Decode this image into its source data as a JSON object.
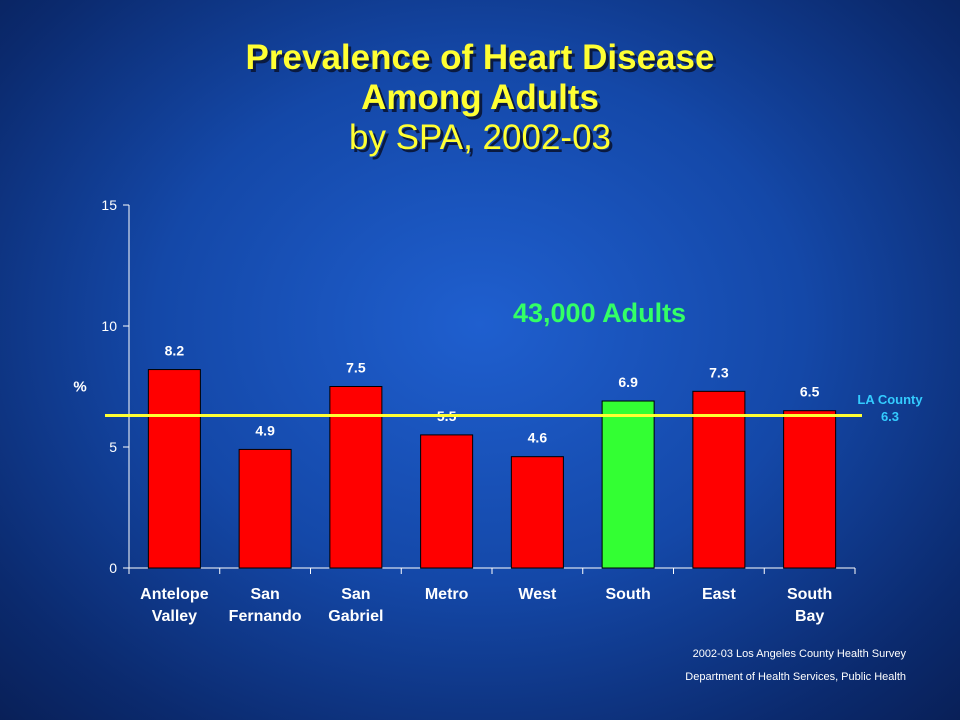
{
  "title": {
    "line1": "Prevalence of Heart Disease",
    "line2": "Among Adults",
    "line3": "by SPA, 2002-03"
  },
  "annotation": "43,000 Adults",
  "reference": {
    "label": "LA County",
    "value": "6.3",
    "y": 6.3,
    "color": "#ffff33"
  },
  "footer": {
    "source": "2002-03 Los Angeles County Health Survey",
    "dept": "Department of Health Services, Public Health"
  },
  "chart_data": {
    "type": "bar",
    "title": "Prevalence of Heart Disease Among Adults by SPA, 2002-03",
    "ylabel": "%",
    "xlabel": "",
    "ylim": [
      0,
      15
    ],
    "yticks": [
      0,
      5,
      10,
      15
    ],
    "categories": [
      [
        "Antelope",
        "Valley"
      ],
      [
        "San",
        "Fernando"
      ],
      [
        "San",
        "Gabriel"
      ],
      [
        "Metro"
      ],
      [
        "West"
      ],
      [
        "South"
      ],
      [
        "East"
      ],
      [
        "South",
        "Bay"
      ]
    ],
    "values": [
      8.2,
      4.9,
      7.5,
      5.5,
      4.6,
      6.9,
      7.3,
      6.5
    ],
    "value_labels": [
      "8.2",
      "4.9",
      "7.5",
      "5.5",
      "4.6",
      "6.9",
      "7.3",
      "6.5"
    ],
    "colors": [
      "#ff0000",
      "#ff0000",
      "#ff0000",
      "#ff0000",
      "#ff0000",
      "#33ff33",
      "#ff0000",
      "#ff0000"
    ],
    "highlight": "South"
  }
}
